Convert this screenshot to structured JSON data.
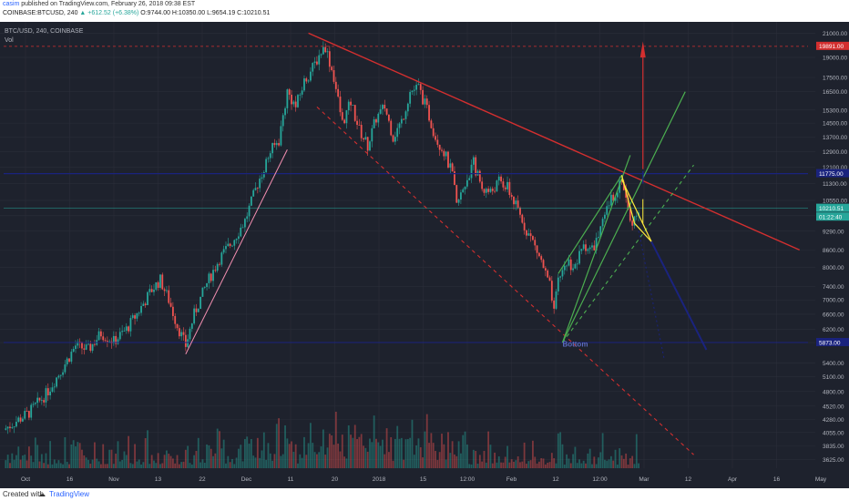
{
  "header": {
    "user": "casim",
    "published": "published on TradingView.com, February 26, 2018 09:38 EST",
    "symbol_line": "COINBASE:BTCUSD, 240",
    "change": "▲ +612.52 (+6.38%)",
    "ohlc": "O:9744.00 H:10350.00 L:9654.19 C:10210.51"
  },
  "chart_meta": {
    "symbol": "BTC/USD, 240, COINBASE",
    "volume_label": "Vol"
  },
  "footer": {
    "created_with": "Created with",
    "brand": "TradingView"
  },
  "colors": {
    "background": "#1e222d",
    "grid": "#2a2e39",
    "up": "#26a69a",
    "down": "#ef5350",
    "trend_red": "#d32f2f",
    "channel_green": "#4caf50",
    "wedge_yellow": "#ffeb3b",
    "projection_blue": "#1a237e",
    "pink_line": "#f48fb1"
  },
  "chart_data": {
    "type": "candlestick",
    "title": "BTC/USD, 240, COINBASE",
    "scale": "log",
    "ylim": [
      3500,
      22000
    ],
    "x_ticks": [
      "Oct",
      "16",
      "Nov",
      "13",
      "22",
      "Dec",
      "11",
      "20",
      "2018",
      "15",
      "12:00",
      "Feb",
      "12",
      "12:00",
      "Mar",
      "12",
      "Apr",
      "16",
      "May"
    ],
    "y_ticks": [
      21000,
      19000,
      17500,
      16500,
      15300,
      14500,
      13700,
      12900,
      12100,
      11300,
      10550,
      9900,
      9290,
      8600,
      8000,
      7400,
      7000,
      6600,
      6200,
      5873,
      5400,
      5100,
      4800,
      4520,
      4280,
      4055,
      3835,
      3625
    ],
    "price_labels": [
      {
        "value": "19891.00",
        "color": "#d32f2f"
      },
      {
        "value": "11775.00",
        "color": "#1a237e"
      },
      {
        "value": "10210.51",
        "color": "#26a69a"
      },
      {
        "value": "01:22:40",
        "color": "#26a69a"
      },
      {
        "value": "5873.00",
        "color": "#1a237e"
      }
    ],
    "price_path": [
      {
        "x": 0,
        "y": 4100
      },
      {
        "x": 3,
        "y": 4250
      },
      {
        "x": 6,
        "y": 4400
      },
      {
        "x": 10,
        "y": 4750
      },
      {
        "x": 14,
        "y": 5300
      },
      {
        "x": 17,
        "y": 5800
      },
      {
        "x": 20,
        "y": 5700
      },
      {
        "x": 23,
        "y": 6100
      },
      {
        "x": 26,
        "y": 5900
      },
      {
        "x": 29,
        "y": 6200
      },
      {
        "x": 32,
        "y": 6700
      },
      {
        "x": 35,
        "y": 7300
      },
      {
        "x": 37,
        "y": 7600
      },
      {
        "x": 39,
        "y": 7000
      },
      {
        "x": 41,
        "y": 6300
      },
      {
        "x": 43,
        "y": 5800
      },
      {
        "x": 45,
        "y": 6600
      },
      {
        "x": 48,
        "y": 7500
      },
      {
        "x": 51,
        "y": 8300
      },
      {
        "x": 54,
        "y": 8900
      },
      {
        "x": 57,
        "y": 9700
      },
      {
        "x": 60,
        "y": 11300
      },
      {
        "x": 63,
        "y": 12900
      },
      {
        "x": 65,
        "y": 13500
      },
      {
        "x": 67,
        "y": 16500
      },
      {
        "x": 69,
        "y": 15500
      },
      {
        "x": 71,
        "y": 17200
      },
      {
        "x": 73,
        "y": 18200
      },
      {
        "x": 75,
        "y": 19500
      },
      {
        "x": 76,
        "y": 19891
      },
      {
        "x": 78,
        "y": 17500
      },
      {
        "x": 80,
        "y": 14500
      },
      {
        "x": 82,
        "y": 15800
      },
      {
        "x": 84,
        "y": 14100
      },
      {
        "x": 86,
        "y": 13200
      },
      {
        "x": 88,
        "y": 14800
      },
      {
        "x": 90,
        "y": 15500
      },
      {
        "x": 92,
        "y": 13700
      },
      {
        "x": 94,
        "y": 14600
      },
      {
        "x": 96,
        "y": 16500
      },
      {
        "x": 98,
        "y": 16800
      },
      {
        "x": 100,
        "y": 15300
      },
      {
        "x": 102,
        "y": 13700
      },
      {
        "x": 104,
        "y": 12900
      },
      {
        "x": 106,
        "y": 11700
      },
      {
        "x": 107,
        "y": 10300
      },
      {
        "x": 109,
        "y": 11300
      },
      {
        "x": 111,
        "y": 12300
      },
      {
        "x": 113,
        "y": 11100
      },
      {
        "x": 115,
        "y": 10900
      },
      {
        "x": 117,
        "y": 11400
      },
      {
        "x": 119,
        "y": 11100
      },
      {
        "x": 121,
        "y": 10300
      },
      {
        "x": 123,
        "y": 9500
      },
      {
        "x": 125,
        "y": 8900
      },
      {
        "x": 127,
        "y": 8200
      },
      {
        "x": 129,
        "y": 7400
      },
      {
        "x": 130,
        "y": 6600
      },
      {
        "x": 131,
        "y": 7600
      },
      {
        "x": 133,
        "y": 8200
      },
      {
        "x": 135,
        "y": 8000
      },
      {
        "x": 137,
        "y": 8800
      },
      {
        "x": 139,
        "y": 8600
      },
      {
        "x": 141,
        "y": 9300
      },
      {
        "x": 143,
        "y": 10400
      },
      {
        "x": 145,
        "y": 11100
      },
      {
        "x": 146,
        "y": 11600
      },
      {
        "x": 147,
        "y": 10600
      },
      {
        "x": 148,
        "y": 9600
      },
      {
        "x": 149,
        "y": 9800
      },
      {
        "x": 150,
        "y": 10210
      }
    ],
    "annotations": [
      {
        "type": "label",
        "text": "Bottom",
        "x": 132,
        "y": 5780
      }
    ]
  }
}
